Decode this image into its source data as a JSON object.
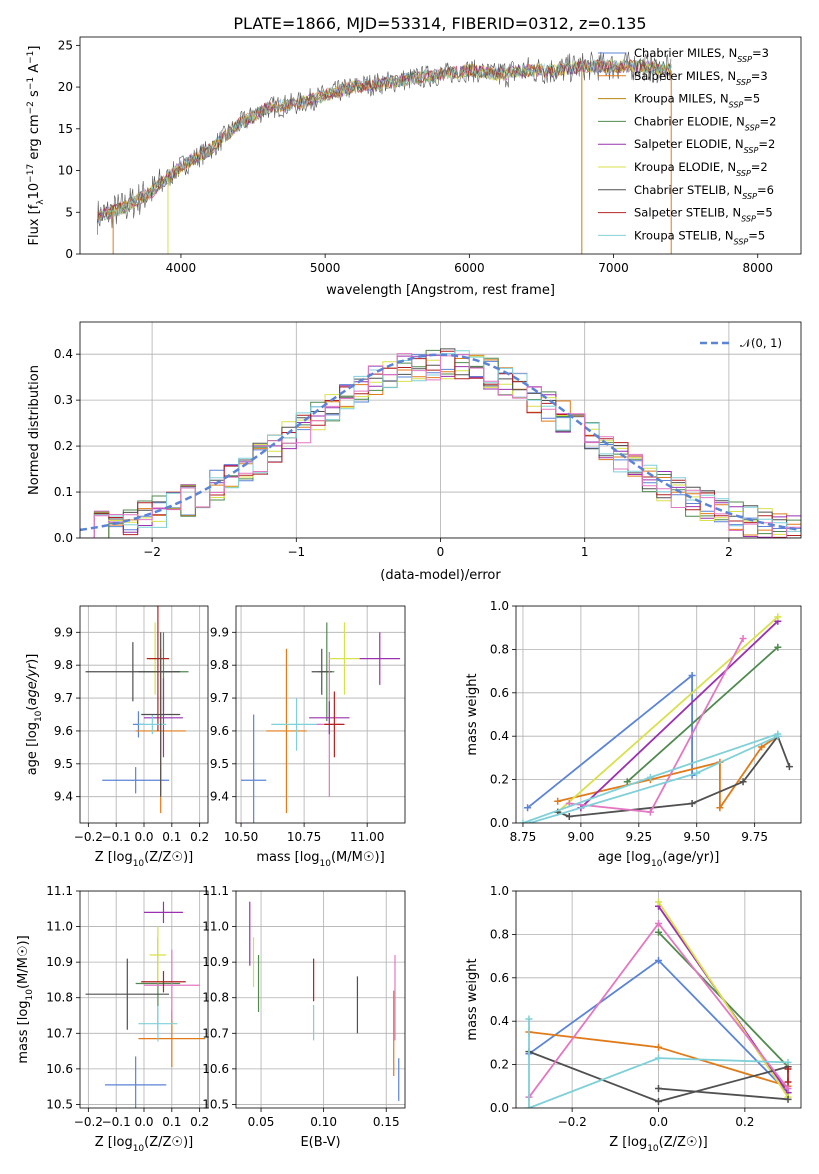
{
  "figure_title": "PLATE=1866, MJD=53314, FIBERID=0312, z=0.135",
  "colors": {
    "miles_chabrier": "#5b84d6",
    "miles_salpeter": "#e07b1a",
    "miles_kroupa": "#b8860b",
    "elodie_chabrier": "#4f8a4f",
    "elodie_salpeter": "#9b30b0",
    "elodie_kroupa": "#d8e04a",
    "stelib_chabrier": "#505050",
    "stelib_salpeter": "#b22222",
    "stelib_kroupa": "#7fd0d8",
    "pink": "#e377c2",
    "gaussian": "#5b84d6"
  },
  "chart_data": [
    {
      "id": "spectrum",
      "type": "line",
      "title": "PLATE=1866, MJD=53314, FIBERID=0312, z=0.135",
      "xlabel": "wavelength [Angstrom, rest frame]",
      "ylabel": "Flux [f_λ 10^-17 erg cm^-2 s^-1 A^-1]",
      "xlim": [
        3300,
        8300
      ],
      "ylim": [
        0,
        26
      ],
      "xticks": [
        4000,
        5000,
        6000,
        7000,
        8000
      ],
      "yticks": [
        0,
        5,
        10,
        15,
        20,
        25
      ],
      "legend": "top-right",
      "legend_entries": [
        {
          "pre": "Chabrier MILES, N",
          "sub": "SSP",
          "post": "=3"
        },
        {
          "pre": "Salpeter MILES, N",
          "sub": "SSP",
          "post": "=3"
        },
        {
          "pre": "Kroupa MILES, N",
          "sub": "SSP",
          "post": "=5"
        },
        {
          "pre": "Chabrier ELODIE, N",
          "sub": "SSP",
          "post": "=2"
        },
        {
          "pre": "Salpeter ELODIE, N",
          "sub": "SSP",
          "post": "=2"
        },
        {
          "pre": "Kroupa ELODIE, N",
          "sub": "SSP",
          "post": "=2"
        },
        {
          "pre": "Chabrier STELIB, N",
          "sub": "SSP",
          "post": "=6"
        },
        {
          "pre": "Salpeter STELIB, N",
          "sub": "SSP",
          "post": "=5"
        },
        {
          "pre": "Kroupa STELIB, N",
          "sub": "SSP",
          "post": "=5"
        }
      ],
      "legend_colors": [
        "#5b84d6",
        "#e07b1a",
        "#b8860b",
        "#4f8a4f",
        "#9b30b0",
        "#d8e04a",
        "#505050",
        "#b22222",
        "#7fd0d8"
      ],
      "continuum_x": [
        3420,
        3600,
        3800,
        4000,
        4200,
        4400,
        4600,
        4800,
        5000,
        5200,
        5400,
        5600,
        5800,
        6000,
        6200,
        6400,
        6600,
        6800,
        7000,
        7200,
        7400
      ],
      "continuum_y": [
        4.5,
        5.5,
        7.5,
        10.5,
        12.5,
        15.5,
        17.5,
        18.0,
        19.0,
        20.0,
        20.5,
        21.0,
        21.5,
        22.0,
        21.5,
        22.0,
        22.0,
        22.5,
        22.5,
        22.5,
        22.0
      ]
    },
    {
      "id": "residuals",
      "type": "histogram",
      "xlabel": "(data-model)/error",
      "ylabel": "Normed distribution",
      "xlim": [
        -2.5,
        2.5
      ],
      "ylim": [
        0,
        0.47
      ],
      "xticks": [
        -2,
        -1,
        0,
        1,
        2
      ],
      "yticks": [
        0.0,
        0.1,
        0.2,
        0.3,
        0.4
      ],
      "xticklabels": [
        "−2",
        "−1",
        "0",
        "1",
        "2"
      ],
      "yticklabels": [
        "0.0",
        "0.1",
        "0.2",
        "0.3",
        "0.4"
      ],
      "grid": true,
      "legend": "top-right",
      "gaussian_label": "𝒩(0, 1)",
      "bin_width": 0.1
    },
    {
      "id": "age_vs_Z",
      "type": "errorbar",
      "xlabel_pre": "Z [log",
      "xlabel_sub": "10",
      "xlabel_post": "(Z/Z☉)]",
      "ylabel": "age [log10(age/yr)]",
      "xlim": [
        -0.23,
        0.23
      ],
      "ylim": [
        9.32,
        9.98
      ],
      "xticks": [
        -0.2,
        -0.1,
        0.0,
        0.1,
        0.2
      ],
      "xticklabels": [
        "−0.2",
        "−0.1",
        "0.0",
        "0.1",
        "0.2"
      ],
      "yticks": [
        9.4,
        9.5,
        9.6,
        9.7,
        9.8,
        9.9
      ],
      "yticklabels": [
        "9.4",
        "9.5",
        "9.6",
        "9.7",
        "9.8",
        "9.9"
      ],
      "grid": true,
      "points": [
        {
          "x": -0.03,
          "y": 9.45,
          "xerr": 0.12,
          "yerr": 0.04,
          "c": "#5b84d6"
        },
        {
          "x": -0.02,
          "y": 9.62,
          "xerr": 0.02,
          "yerr": 0.04,
          "c": "#5b84d6"
        },
        {
          "x": 0.06,
          "y": 9.6,
          "xerr": 0.09,
          "yerr": 0.25,
          "c": "#e07b1a"
        },
        {
          "x": 0.07,
          "y": 9.78,
          "xerr": 0.09,
          "yerr": 0.12,
          "c": "#4f8a4f"
        },
        {
          "x": 0.07,
          "y": 9.64,
          "xerr": 0.07,
          "yerr": 0.12,
          "c": "#9b30b0"
        },
        {
          "x": 0.04,
          "y": 9.82,
          "xerr": 0.02,
          "yerr": 0.11,
          "c": "#d8e04a"
        },
        {
          "x": -0.04,
          "y": 9.78,
          "xerr": 0.17,
          "yerr": 0.09,
          "c": "#505050"
        },
        {
          "x": 0.05,
          "y": 9.82,
          "xerr": 0.04,
          "yerr": 0.22,
          "c": "#b22222"
        },
        {
          "x": 0.03,
          "y": 9.62,
          "xerr": 0.05,
          "yerr": 0.03,
          "c": "#7fd0d8"
        },
        {
          "x": 0.06,
          "y": 9.65,
          "xerr": 0.07,
          "yerr": 0.25,
          "c": "#505050"
        }
      ]
    },
    {
      "id": "age_vs_mass",
      "type": "errorbar",
      "xlabel_pre": "mass [log",
      "xlabel_sub": "10",
      "xlabel_post": "(M/M☉)]",
      "ylabel": "",
      "xlim": [
        10.48,
        11.15
      ],
      "ylim": [
        9.32,
        9.98
      ],
      "xticks": [
        10.5,
        10.75,
        11.0
      ],
      "xticklabels": [
        "10.50",
        "10.75",
        "11.00"
      ],
      "yticks": [
        9.4,
        9.5,
        9.6,
        9.7,
        9.8,
        9.9
      ],
      "yticklabels": [
        "9.4",
        "9.5",
        "9.6",
        "9.7",
        "9.8",
        "9.9"
      ],
      "grid": true,
      "points": [
        {
          "x": 10.55,
          "y": 9.45,
          "xerr": 0.05,
          "yerr": 0.2,
          "c": "#5b84d6"
        },
        {
          "x": 10.68,
          "y": 9.6,
          "xerr": 0.08,
          "yerr": 0.25,
          "c": "#e07b1a"
        },
        {
          "x": 10.72,
          "y": 9.62,
          "xerr": 0.1,
          "yerr": 0.08,
          "c": "#7fd0d8"
        },
        {
          "x": 10.84,
          "y": 9.78,
          "xerr": 0.03,
          "yerr": 0.15,
          "c": "#4f8a4f"
        },
        {
          "x": 10.82,
          "y": 9.78,
          "xerr": 0.04,
          "yerr": 0.07,
          "c": "#505050"
        },
        {
          "x": 10.85,
          "y": 9.62,
          "xerr": 0.05,
          "yerr": 0.22,
          "c": "#e377c2"
        },
        {
          "x": 10.85,
          "y": 9.64,
          "xerr": 0.08,
          "yerr": 0.05,
          "c": "#9b30b0"
        },
        {
          "x": 10.91,
          "y": 9.82,
          "xerr": 0.06,
          "yerr": 0.11,
          "c": "#d8e04a"
        },
        {
          "x": 11.05,
          "y": 9.82,
          "xerr": 0.08,
          "yerr": 0.08,
          "c": "#9b30b0"
        },
        {
          "x": 10.87,
          "y": 9.62,
          "xerr": 0.04,
          "yerr": 0.1,
          "c": "#b22222"
        }
      ]
    },
    {
      "id": "weight_vs_age",
      "type": "line",
      "xlabel_pre": "age [log",
      "xlabel_sub": "10",
      "xlabel_post": "(age/yr)]",
      "ylabel": "mass weight",
      "xlim": [
        8.72,
        9.95
      ],
      "ylim": [
        0,
        1
      ],
      "xticks": [
        8.75,
        9.0,
        9.25,
        9.5,
        9.75
      ],
      "xticklabels": [
        "8.75",
        "9.00",
        "9.25",
        "9.50",
        "9.75"
      ],
      "yticks": [
        0,
        0.2,
        0.4,
        0.6,
        0.8,
        1.0
      ],
      "yticklabels": [
        "0.0",
        "0.2",
        "0.4",
        "0.6",
        "0.8",
        "1.0"
      ],
      "grid": true,
      "series": [
        {
          "c": "#5b84d6",
          "x": [
            8.77,
            9.48,
            9.48
          ],
          "y": [
            0.07,
            0.68,
            0.22
          ]
        },
        {
          "c": "#e07b1a",
          "x": [
            8.9,
            9.3,
            9.6,
            9.6,
            9.78,
            9.85
          ],
          "y": [
            0.1,
            0.2,
            0.28,
            0.07,
            0.35,
            0.4
          ]
        },
        {
          "c": "#4f8a4f",
          "x": [
            9.2,
            9.85
          ],
          "y": [
            0.19,
            0.81
          ]
        },
        {
          "c": "#9b30b0",
          "x": [
            9.0,
            9.85
          ],
          "y": [
            0.07,
            0.93
          ]
        },
        {
          "c": "#d8e04a",
          "x": [
            8.9,
            9.85
          ],
          "y": [
            0.05,
            0.95
          ]
        },
        {
          "c": "#505050",
          "x": [
            8.9,
            8.95,
            9.48,
            9.7,
            9.85,
            9.9
          ],
          "y": [
            0.05,
            0.03,
            0.09,
            0.19,
            0.4,
            0.26
          ]
        },
        {
          "c": "#e377c2",
          "x": [
            8.95,
            9.3,
            9.7
          ],
          "y": [
            0.09,
            0.05,
            0.85
          ]
        },
        {
          "c": "#7fd0d8",
          "x": [
            8.75,
            9.3,
            9.85
          ],
          "y": [
            0.0,
            0.21,
            0.41
          ]
        },
        {
          "c": "#7fd0d8",
          "x": [
            8.78,
            9.5,
            9.85
          ],
          "y": [
            0.0,
            0.23,
            0.4
          ]
        }
      ]
    },
    {
      "id": "mass_vs_Z",
      "type": "errorbar",
      "xlabel_pre": "Z [log",
      "xlabel_sub": "10",
      "xlabel_post": "(Z/Z☉)]",
      "ylabel": "mass [log10(M/M☉)]",
      "xlim": [
        -0.23,
        0.23
      ],
      "ylim": [
        10.49,
        11.1
      ],
      "xticks": [
        -0.2,
        -0.1,
        0.0,
        0.1,
        0.2
      ],
      "xticklabels": [
        "−0.2",
        "−0.1",
        "0.0",
        "0.1",
        "0.2"
      ],
      "yticks": [
        10.5,
        10.6,
        10.7,
        10.8,
        10.9,
        11.0,
        11.1
      ],
      "yticklabels": [
        "10.5",
        "10.6",
        "10.7",
        "10.8",
        "10.9",
        "11.0",
        "11.1"
      ],
      "grid": true,
      "points": [
        {
          "x": -0.03,
          "y": 10.555,
          "xerr": 0.11,
          "yerr": 0.08,
          "c": "#5b84d6"
        },
        {
          "x": 0.1,
          "y": 10.685,
          "xerr": 0.12,
          "yerr": 0.08,
          "c": "#e07b1a"
        },
        {
          "x": 0.05,
          "y": 10.84,
          "xerr": 0.08,
          "yerr": 0.13,
          "c": "#4f8a4f"
        },
        {
          "x": 0.07,
          "y": 11.04,
          "xerr": 0.07,
          "yerr": 0.03,
          "c": "#9b30b0"
        },
        {
          "x": 0.05,
          "y": 10.92,
          "xerr": 0.03,
          "yerr": 0.08,
          "c": "#d8e04a"
        },
        {
          "x": -0.06,
          "y": 10.81,
          "xerr": 0.15,
          "yerr": 0.1,
          "c": "#505050"
        },
        {
          "x": 0.1,
          "y": 10.835,
          "xerr": 0.1,
          "yerr": 0.1,
          "c": "#e377c2"
        },
        {
          "x": 0.07,
          "y": 10.845,
          "xerr": 0.08,
          "yerr": 0.03,
          "c": "#b22222"
        },
        {
          "x": 0.05,
          "y": 10.727,
          "xerr": 0.07,
          "yerr": 0.05,
          "c": "#7fd0d8"
        }
      ]
    },
    {
      "id": "mass_vs_ebv",
      "type": "errorbar",
      "xlabel": "E(B-V)",
      "xlim": [
        0.03,
        0.165
      ],
      "ylim": [
        10.49,
        11.1
      ],
      "xticks": [
        0.05,
        0.1,
        0.15
      ],
      "xticklabels": [
        "0.05",
        "0.10",
        "0.15"
      ],
      "yticks": [
        10.5,
        10.6,
        10.7,
        10.8,
        10.9,
        11.0,
        11.1
      ],
      "yticklabels": [
        "10.5",
        "10.6",
        "10.7",
        "10.8",
        "10.9",
        "11.0",
        "11.1"
      ],
      "grid": true,
      "points": [
        {
          "x": 0.041,
          "y": 10.98,
          "yerr": 0.09,
          "c": "#9b30b0"
        },
        {
          "x": 0.044,
          "y": 10.9,
          "yerr": 0.07,
          "c": "#d8e04a"
        },
        {
          "x": 0.048,
          "y": 10.84,
          "yerr": 0.08,
          "c": "#4f8a4f"
        },
        {
          "x": 0.092,
          "y": 10.73,
          "yerr": 0.05,
          "c": "#7fd0d8"
        },
        {
          "x": 0.092,
          "y": 10.85,
          "yerr": 0.06,
          "c": "#b22222"
        },
        {
          "x": 0.127,
          "y": 10.78,
          "yerr": 0.08,
          "c": "#505050"
        },
        {
          "x": 0.156,
          "y": 10.7,
          "yerr": 0.12,
          "c": "#e07b1a"
        },
        {
          "x": 0.157,
          "y": 10.8,
          "yerr": 0.12,
          "c": "#e377c2"
        },
        {
          "x": 0.16,
          "y": 10.57,
          "yerr": 0.06,
          "c": "#5b84d6"
        }
      ]
    },
    {
      "id": "weight_vs_Z",
      "type": "line",
      "xlabel_pre": "Z [log",
      "xlabel_sub": "10",
      "xlabel_post": "(Z/Z☉)]",
      "ylabel": "mass weight",
      "xlim": [
        -0.33,
        0.33
      ],
      "ylim": [
        0,
        1
      ],
      "xticks": [
        -0.2,
        0.0,
        0.2
      ],
      "xticklabels": [
        "−0.2",
        "0.0",
        "0.2"
      ],
      "yticks": [
        0,
        0.2,
        0.4,
        0.6,
        0.8,
        1.0
      ],
      "yticklabels": [
        "0.0",
        "0.2",
        "0.4",
        "0.6",
        "0.8",
        "1.0"
      ],
      "grid": true,
      "series": [
        {
          "c": "#5b84d6",
          "x": [
            -0.3,
            0.0,
            0.3
          ],
          "y": [
            0.25,
            0.68,
            0.07
          ]
        },
        {
          "c": "#e07b1a",
          "x": [
            -0.3,
            0.0,
            0.3
          ],
          "y": [
            0.35,
            0.28,
            0.1
          ]
        },
        {
          "c": "#4f8a4f",
          "x": [
            0.0,
            0.3
          ],
          "y": [
            0.81,
            0.19
          ]
        },
        {
          "c": "#9b30b0",
          "x": [
            0.0,
            0.3
          ],
          "y": [
            0.93,
            0.07
          ]
        },
        {
          "c": "#d8e04a",
          "x": [
            0.0,
            0.3
          ],
          "y": [
            0.95,
            0.05
          ]
        },
        {
          "c": "#505050",
          "x": [
            -0.3,
            0.0,
            0.3
          ],
          "y": [
            0.26,
            0.03,
            0.19
          ]
        },
        {
          "c": "#505050",
          "x": [
            0.0,
            0.3
          ],
          "y": [
            0.09,
            0.04
          ]
        },
        {
          "c": "#e377c2",
          "x": [
            -0.3,
            0.0,
            0.3
          ],
          "y": [
            0.05,
            0.85,
            0.09
          ]
        },
        {
          "c": "#7fd0d8",
          "x": [
            -0.3,
            -0.3,
            0.0,
            0.3
          ],
          "y": [
            0.41,
            0.0,
            0.23,
            0.21
          ]
        },
        {
          "c": "#b22222",
          "x": [
            0.3,
            0.3
          ],
          "y": [
            0.18,
            0.12
          ]
        }
      ]
    }
  ]
}
